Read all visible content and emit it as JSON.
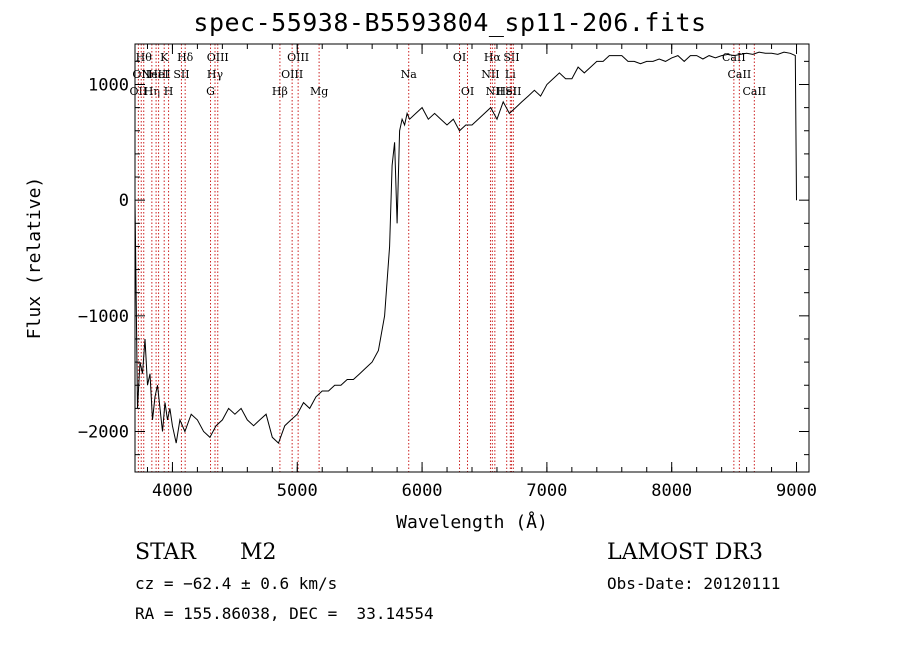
{
  "chart_data": {
    "type": "line",
    "title": "spec-55938-B5593804_sp11-206.fits",
    "xlabel": "Wavelength (Å)",
    "ylabel": "Flux (relative)",
    "xlim": [
      3700,
      9100
    ],
    "ylim": [
      -2350,
      1350
    ],
    "xticks": [
      4000,
      5000,
      6000,
      7000,
      8000,
      9000
    ],
    "yticks": [
      -2000,
      -1000,
      0,
      1000
    ],
    "grid": false,
    "series": [
      {
        "x": [
          3700,
          3720,
          3740,
          3760,
          3780,
          3800,
          3820,
          3840,
          3860,
          3880,
          3900,
          3920,
          3940,
          3960,
          3980,
          4000,
          4030,
          4060,
          4100,
          4150,
          4200,
          4250,
          4300,
          4350,
          4400,
          4450,
          4500,
          4550,
          4600,
          4650,
          4700,
          4750,
          4800,
          4850,
          4900,
          4950,
          5000,
          5050,
          5100,
          5150,
          5200,
          5250,
          5300,
          5350,
          5400,
          5450,
          5500,
          5550,
          5600,
          5650,
          5700,
          5720,
          5740,
          5760,
          5780,
          5800,
          5820,
          5840,
          5860,
          5880,
          5900,
          5950,
          6000,
          6050,
          6100,
          6150,
          6200,
          6250,
          6300,
          6350,
          6400,
          6450,
          6500,
          6550,
          6600,
          6650,
          6700,
          6750,
          6800,
          6850,
          6900,
          6950,
          7000,
          7050,
          7100,
          7150,
          7200,
          7250,
          7300,
          7350,
          7400,
          7450,
          7500,
          7550,
          7600,
          7650,
          7700,
          7750,
          7800,
          7850,
          7900,
          7950,
          8000,
          8050,
          8100,
          8150,
          8200,
          8250,
          8300,
          8350,
          8400,
          8450,
          8500,
          8550,
          8600,
          8650,
          8700,
          8750,
          8800,
          8850,
          8900,
          8950,
          8990,
          9000
        ],
        "y": [
          0,
          -1800,
          -1400,
          -1500,
          -1200,
          -1600,
          -1500,
          -1900,
          -1700,
          -1600,
          -1800,
          -2000,
          -1750,
          -1900,
          -1800,
          -1950,
          -2100,
          -1900,
          -2000,
          -1850,
          -1900,
          -2000,
          -2050,
          -1950,
          -1900,
          -1800,
          -1850,
          -1800,
          -1900,
          -1950,
          -1900,
          -1850,
          -2050,
          -2100,
          -1950,
          -1900,
          -1850,
          -1750,
          -1800,
          -1700,
          -1650,
          -1650,
          -1600,
          -1600,
          -1550,
          -1550,
          -1500,
          -1450,
          -1400,
          -1300,
          -1000,
          -700,
          -400,
          300,
          500,
          -200,
          600,
          700,
          650,
          750,
          700,
          750,
          800,
          700,
          750,
          700,
          650,
          700,
          600,
          650,
          650,
          700,
          750,
          800,
          700,
          850,
          750,
          800,
          850,
          900,
          950,
          900,
          1000,
          1050,
          1100,
          1050,
          1050,
          1150,
          1100,
          1150,
          1200,
          1200,
          1250,
          1250,
          1250,
          1200,
          1200,
          1180,
          1200,
          1200,
          1220,
          1200,
          1230,
          1250,
          1200,
          1250,
          1250,
          1220,
          1250,
          1230,
          1250,
          1260,
          1250,
          1260,
          1270,
          1260,
          1280,
          1270,
          1270,
          1260,
          1280,
          1270,
          1250,
          0
        ]
      }
    ],
    "lines": [
      {
        "wave": 3727,
        "label": "OII",
        "row": 3
      },
      {
        "wave": 3750,
        "label": "OII",
        "row": 2
      },
      {
        "wave": 3770,
        "label": "Hθ",
        "row": 1
      },
      {
        "wave": 3835,
        "label": "Hη",
        "row": 3
      },
      {
        "wave": 3869,
        "label": "NeIII",
        "row": 2
      },
      {
        "wave": 3889,
        "label": "HeI",
        "row": 2
      },
      {
        "wave": 3934,
        "label": "K",
        "row": 1
      },
      {
        "wave": 3969,
        "label": "H",
        "row": 3
      },
      {
        "wave": 4072,
        "label": "SII",
        "row": 2
      },
      {
        "wave": 4102,
        "label": "Hδ",
        "row": 1
      },
      {
        "wave": 4305,
        "label": "G",
        "row": 3
      },
      {
        "wave": 4341,
        "label": "Hγ",
        "row": 2
      },
      {
        "wave": 4363,
        "label": "OIII",
        "row": 1
      },
      {
        "wave": 4861,
        "label": "Hβ",
        "row": 3
      },
      {
        "wave": 4959,
        "label": "OIII",
        "row": 2
      },
      {
        "wave": 5007,
        "label": "OIII",
        "row": 1
      },
      {
        "wave": 5175,
        "label": "Mg",
        "row": 3
      },
      {
        "wave": 5893,
        "label": "Na",
        "row": 2
      },
      {
        "wave": 6300,
        "label": "OI",
        "row": 1
      },
      {
        "wave": 6364,
        "label": "OI",
        "row": 3
      },
      {
        "wave": 6548,
        "label": "NII",
        "row": 2
      },
      {
        "wave": 6563,
        "label": "Hα",
        "row": 1
      },
      {
        "wave": 6583,
        "label": "NII",
        "row": 3
      },
      {
        "wave": 6678,
        "label": "HeI",
        "row": 3
      },
      {
        "wave": 6707,
        "label": "Li",
        "row": 2
      },
      {
        "wave": 6716,
        "label": "SII",
        "row": 1
      },
      {
        "wave": 6731,
        "label": "SII",
        "row": 3
      },
      {
        "wave": 8498,
        "label": "CaII",
        "row": 1
      },
      {
        "wave": 8542,
        "label": "CaII",
        "row": 2
      },
      {
        "wave": 8662,
        "label": "CaII",
        "row": 3
      }
    ],
    "line_color": "#cc2222"
  },
  "info": {
    "class": "STAR",
    "subclass": "M2",
    "survey": "LAMOST DR3",
    "cz": "cz = −62.4 ± 0.6 km/s",
    "obs_date": "Obs-Date: 20120111",
    "coords": "RA = 155.86038, DEC =  33.14554"
  }
}
